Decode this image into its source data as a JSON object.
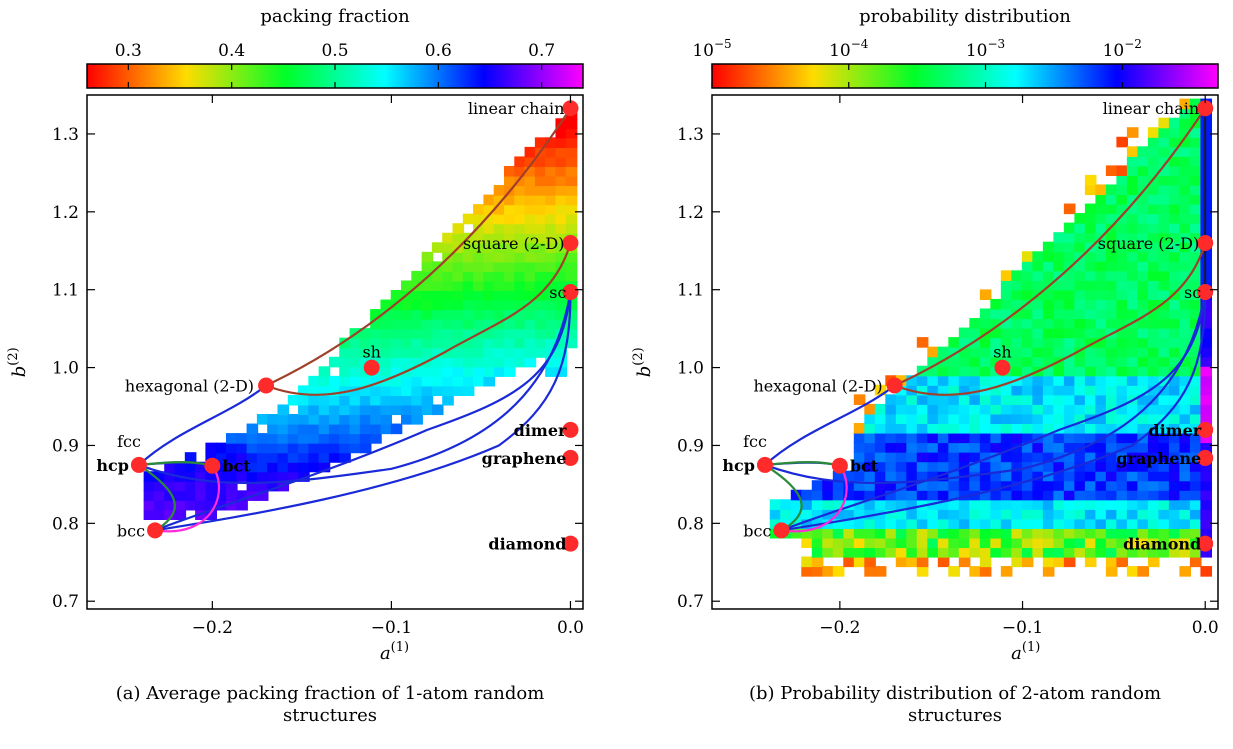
{
  "chart_data": [
    {
      "type": "heatmap",
      "colorbar_label": "packing fraction",
      "colorbar_ticks": [
        "0.3",
        "0.4",
        "0.5",
        "0.6",
        "0.7"
      ],
      "colorbar_tick_values": [
        0.3,
        0.4,
        0.5,
        0.6,
        0.7
      ],
      "colorbar_range": [
        0.26,
        0.74
      ],
      "colormap": "gist_rainbow_r",
      "xlabel": "a",
      "xlabel_sup": "(1)",
      "ylabel": "b",
      "ylabel_sup": "(2)",
      "xlim": [
        -0.27,
        0.007
      ],
      "ylim": [
        0.69,
        1.35
      ],
      "xticks": [
        -0.2,
        -0.1,
        0.0
      ],
      "xtick_labels": [
        "−0.2",
        "−0.1",
        "0.0"
      ],
      "yticks": [
        0.7,
        0.8,
        0.9,
        1.0,
        1.1,
        1.2,
        1.3
      ],
      "ytick_labels": [
        "0.7",
        "0.8",
        "0.9",
        "1.0",
        "1.1",
        "1.2",
        "1.3"
      ],
      "grid": false,
      "caption": "(a) Average packing fraction of 1-atom random structures",
      "points": [
        {
          "name": "linear chain",
          "x": 0.0,
          "y": 1.333
        },
        {
          "name": "square (2-D)",
          "x": 0.0,
          "y": 1.16
        },
        {
          "name": "sc",
          "x": 0.0,
          "y": 1.097
        },
        {
          "name": "sh",
          "x": -0.111,
          "y": 1.0
        },
        {
          "name": "hexagonal (2-D)",
          "x": -0.17,
          "y": 0.977
        },
        {
          "name": "dimer",
          "x": 0.0,
          "y": 0.92
        },
        {
          "name": "graphene",
          "x": 0.0,
          "y": 0.884
        },
        {
          "name": "fcc",
          "x": -0.241,
          "y": 0.875
        },
        {
          "name": "hcp",
          "x": -0.241,
          "y": 0.875
        },
        {
          "name": "bct",
          "x": -0.2,
          "y": 0.874
        },
        {
          "name": "bcc",
          "x": -0.232,
          "y": 0.791
        },
        {
          "name": "diamond",
          "x": 0.0,
          "y": 0.774
        }
      ]
    },
    {
      "type": "heatmap",
      "colorbar_label": "probability distribution",
      "colorbar_ticks": [
        "10",
        "10",
        "10",
        "10"
      ],
      "colorbar_tick_exponents": [
        "−5",
        "−4",
        "−3",
        "−2"
      ],
      "colorbar_tick_values": [
        -5,
        -4,
        -3,
        -2
      ],
      "colorbar_range": [
        -5,
        -1.3
      ],
      "colorbar_scale": "log",
      "colormap": "gist_rainbow_r",
      "xlabel": "a",
      "xlabel_sup": "(1)",
      "ylabel": "b",
      "ylabel_sup": "(2)",
      "xlim": [
        -0.27,
        0.007
      ],
      "ylim": [
        0.69,
        1.35
      ],
      "xticks": [
        -0.2,
        -0.1,
        0.0
      ],
      "xtick_labels": [
        "−0.2",
        "−0.1",
        "0.0"
      ],
      "yticks": [
        0.7,
        0.8,
        0.9,
        1.0,
        1.1,
        1.2,
        1.3
      ],
      "ytick_labels": [
        "0.7",
        "0.8",
        "0.9",
        "1.0",
        "1.1",
        "1.2",
        "1.3"
      ],
      "grid": false,
      "caption": "(b) Probability distribution of 2-atom random structures",
      "points": [
        {
          "name": "linear chain",
          "x": 0.0,
          "y": 1.333
        },
        {
          "name": "square (2-D)",
          "x": 0.0,
          "y": 1.16
        },
        {
          "name": "sc",
          "x": 0.0,
          "y": 1.097
        },
        {
          "name": "sh",
          "x": -0.111,
          "y": 1.0
        },
        {
          "name": "hexagonal (2-D)",
          "x": -0.17,
          "y": 0.977
        },
        {
          "name": "dimer",
          "x": 0.0,
          "y": 0.92
        },
        {
          "name": "graphene",
          "x": 0.0,
          "y": 0.884
        },
        {
          "name": "fcc",
          "x": -0.241,
          "y": 0.875
        },
        {
          "name": "hcp",
          "x": -0.241,
          "y": 0.875
        },
        {
          "name": "bct",
          "x": -0.2,
          "y": 0.874
        },
        {
          "name": "bcc",
          "x": -0.232,
          "y": 0.791
        },
        {
          "name": "diamond",
          "x": 0.0,
          "y": 0.774
        }
      ]
    }
  ],
  "captions": {
    "a_line1": "(a) Average packing fraction of 1-atom random",
    "a_line2": "structures",
    "b_line1": "(b) Probability distribution of 2-atom random",
    "b_line2": "structures"
  },
  "colors": {
    "point": "#ff2a2a",
    "path_brown": "#a0402a",
    "path_blue": "#1a2ad8",
    "path_green": "#2a8a3a",
    "path_magenta": "#ff2ad8"
  }
}
